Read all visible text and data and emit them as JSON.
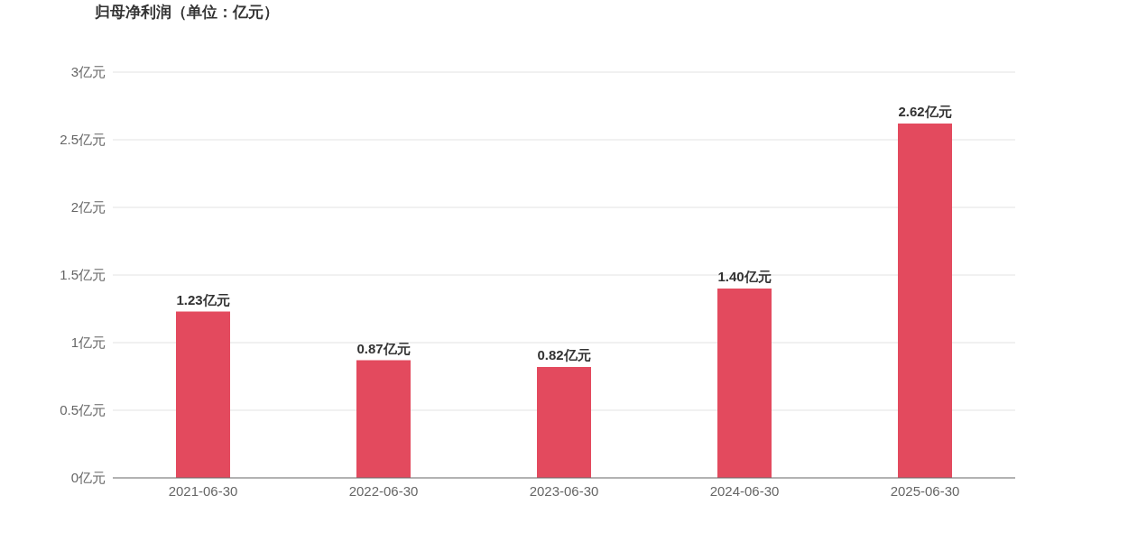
{
  "chart_data": {
    "type": "bar",
    "title": "归母净利润（单位：亿元）",
    "categories": [
      "2021-06-30",
      "2022-06-30",
      "2023-06-30",
      "2024-06-30",
      "2025-06-30"
    ],
    "values": [
      1.23,
      0.87,
      0.82,
      1.4,
      2.62
    ],
    "value_labels": [
      "1.23亿元",
      "0.87亿元",
      "0.82亿元",
      "1.40亿元",
      "2.62亿元"
    ],
    "color": "#e34a5e",
    "ylim": [
      0,
      3
    ],
    "yticks": [
      {
        "value": 0,
        "label": "0亿元"
      },
      {
        "value": 0.5,
        "label": "0.5亿元"
      },
      {
        "value": 1,
        "label": "1亿元"
      },
      {
        "value": 1.5,
        "label": "1.5亿元"
      },
      {
        "value": 2,
        "label": "2亿元"
      },
      {
        "value": 2.5,
        "label": "2.5亿元"
      },
      {
        "value": 3,
        "label": "3亿元"
      }
    ],
    "grid": "y"
  }
}
